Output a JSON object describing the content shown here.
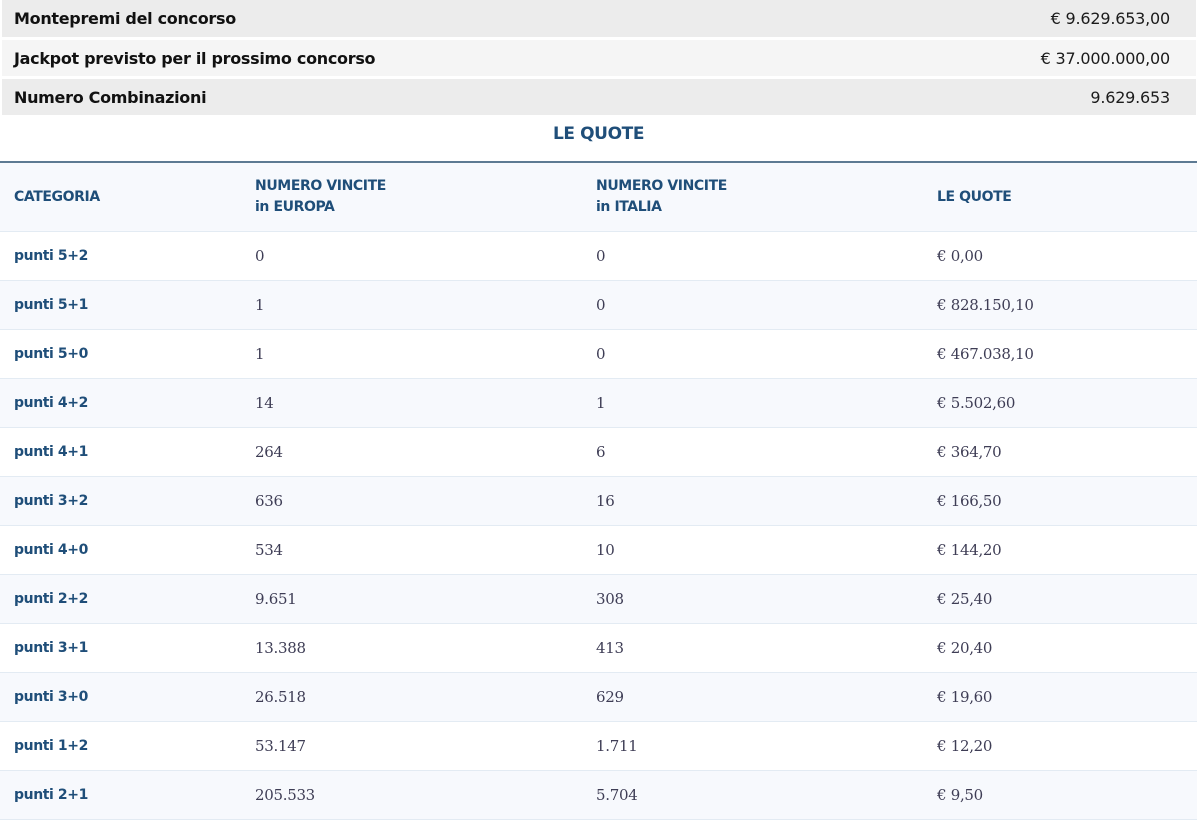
{
  "summary": [
    {
      "label": "Montepremi del concorso",
      "value": "€ 9.629.653,00"
    },
    {
      "label": "Jackpot previsto per il prossimo concorso",
      "value": "€ 37.000.000,00"
    },
    {
      "label": "Numero Combinazioni",
      "value": "9.629.653"
    }
  ],
  "quote_section": {
    "title": "LE QUOTE",
    "headers": {
      "categoria": "CATEGORIA",
      "europa_line1": "NUMERO VINCITE",
      "europa_line2": "in EUROPA",
      "italia_line1": "NUMERO VINCITE",
      "italia_line2": "in ITALIA",
      "quote": "LE QUOTE"
    },
    "rows": [
      {
        "categoria": "punti 5+2",
        "europa": "0",
        "italia": "0",
        "quota": "€ 0,00"
      },
      {
        "categoria": "punti 5+1",
        "europa": "1",
        "italia": "0",
        "quota": "€ 828.150,10"
      },
      {
        "categoria": "punti 5+0",
        "europa": "1",
        "italia": "0",
        "quota": "€ 467.038,10"
      },
      {
        "categoria": "punti 4+2",
        "europa": "14",
        "italia": "1",
        "quota": "€ 5.502,60"
      },
      {
        "categoria": "punti 4+1",
        "europa": "264",
        "italia": "6",
        "quota": "€ 364,70"
      },
      {
        "categoria": "punti 3+2",
        "europa": "636",
        "italia": "16",
        "quota": "€ 166,50"
      },
      {
        "categoria": "punti 4+0",
        "europa": "534",
        "italia": "10",
        "quota": "€ 144,20"
      },
      {
        "categoria": "punti 2+2",
        "europa": "9.651",
        "italia": "308",
        "quota": "€ 25,40"
      },
      {
        "categoria": "punti 3+1",
        "europa": "13.388",
        "italia": "413",
        "quota": "€ 20,40"
      },
      {
        "categoria": "punti 3+0",
        "europa": "26.518",
        "italia": "629",
        "quota": "€ 19,60"
      },
      {
        "categoria": "punti 1+2",
        "europa": "53.147",
        "italia": "1.711",
        "quota": "€ 12,20"
      },
      {
        "categoria": "punti 2+1",
        "europa": "205.533",
        "italia": "5.704",
        "quota": "€ 9,50"
      }
    ]
  },
  "colors": {
    "accent": "#1f4e79",
    "header_border": "#5d7a93",
    "row_alt": "#f7f9fd",
    "summary_dark": "#ececec",
    "summary_light": "#f5f5f5"
  }
}
